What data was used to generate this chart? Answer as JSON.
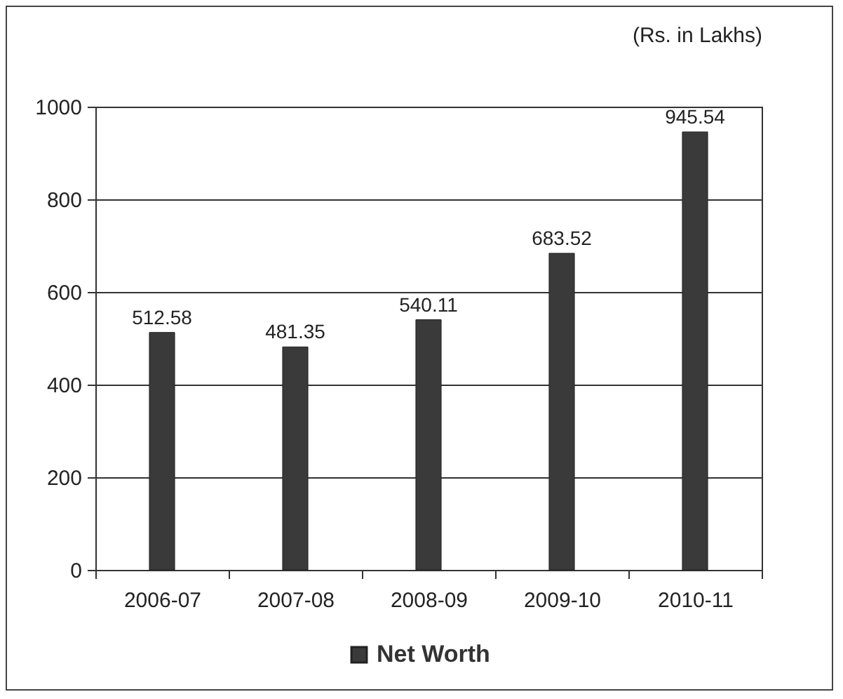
{
  "chart_data": {
    "type": "bar",
    "annotations": [
      "(Rs. in Lakhs)"
    ],
    "categories": [
      "2006-07",
      "2007-08",
      "2008-09",
      "2009-10",
      "2010-11"
    ],
    "series": [
      {
        "name": "Net Worth",
        "color": "#3a3a3a",
        "values": [
          512.58,
          481.35,
          540.11,
          683.52,
          945.54
        ]
      }
    ],
    "ylim": [
      0,
      1000
    ],
    "yticks": [
      0,
      200,
      400,
      600,
      800,
      1000
    ],
    "grid": "y",
    "data_labels": true,
    "legend": "bottom"
  }
}
